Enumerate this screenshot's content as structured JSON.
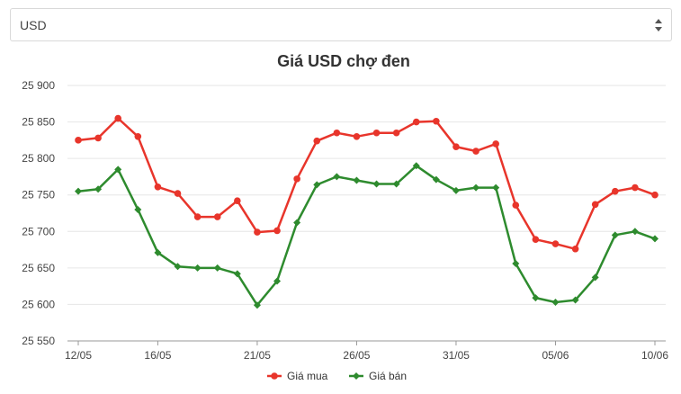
{
  "selector": {
    "value": "USD"
  },
  "chart_data": {
    "type": "line",
    "title": "Giá USD chợ đen",
    "xlabel": "",
    "ylabel": "",
    "ylim": [
      25550,
      25900
    ],
    "yticks": [
      25550,
      25600,
      25650,
      25700,
      25750,
      25800,
      25850,
      25900
    ],
    "ytick_labels": [
      "25 550",
      "25 600",
      "25 650",
      "25 700",
      "25 750",
      "25 800",
      "25 850",
      "25 900"
    ],
    "x": [
      "12/05",
      "13/05",
      "14/05",
      "15/05",
      "16/05",
      "17/05",
      "18/05",
      "19/05",
      "20/05",
      "21/05",
      "22/05",
      "23/05",
      "24/05",
      "25/05",
      "26/05",
      "27/05",
      "28/05",
      "29/05",
      "30/05",
      "31/05",
      "01/06",
      "02/06",
      "03/06",
      "04/06",
      "05/06",
      "06/06",
      "07/06",
      "08/06",
      "09/06",
      "10/06"
    ],
    "xtick_labels": [
      "12/05",
      "16/05",
      "21/05",
      "26/05",
      "31/05",
      "05/06",
      "10/06"
    ],
    "grid": true,
    "legend": "bottom",
    "series": [
      {
        "name": "Giá mua",
        "color": "#e8352b",
        "marker": "circle",
        "values": [
          25825,
          25828,
          25855,
          25830,
          25761,
          25752,
          25720,
          25720,
          25742,
          25699,
          25701,
          25772,
          25824,
          25835,
          25830,
          25835,
          25835,
          25850,
          25851,
          25816,
          25810,
          25820,
          25736,
          25689,
          25683,
          25676,
          25737,
          25755,
          25760,
          25750
        ]
      },
      {
        "name": "Giá bán",
        "color": "#2e8b2e",
        "marker": "diamond",
        "values": [
          25755,
          25758,
          25785,
          25730,
          25671,
          25652,
          25650,
          25650,
          25642,
          25599,
          25632,
          25712,
          25764,
          25775,
          25770,
          25765,
          25765,
          25790,
          25771,
          25756,
          25760,
          25760,
          25656,
          25609,
          25603,
          25606,
          25637,
          25695,
          25700,
          25690
        ]
      }
    ]
  }
}
